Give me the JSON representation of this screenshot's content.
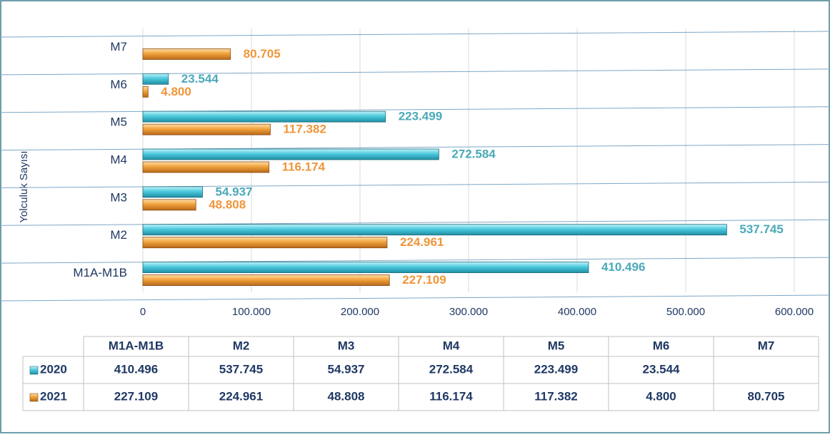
{
  "chart_data": {
    "type": "bar",
    "orientation": "horizontal",
    "y_axis_label": "Yolculuk Sayısı",
    "categories": [
      "M1A-M1B",
      "M2",
      "M3",
      "M4",
      "M5",
      "M6",
      "M7"
    ],
    "series": [
      {
        "name": "2020",
        "color": "#4cc9dd",
        "label_color": "#4aa9b9",
        "values": [
          410496,
          537745,
          54937,
          272584,
          223499,
          23544,
          null
        ],
        "value_labels": [
          "410.496",
          "537.745",
          "54.937",
          "272.584",
          "223.499",
          "23.544",
          null
        ]
      },
      {
        "name": "2021",
        "color": "#f0a23c",
        "label_color": "#f0953a",
        "values": [
          227109,
          224961,
          48808,
          116174,
          117382,
          4800,
          80705
        ],
        "value_labels": [
          "227.109",
          "224.961",
          "48.808",
          "116.174",
          "117.382",
          "4.800",
          "80.705"
        ]
      }
    ],
    "xlim": [
      0,
      600000
    ],
    "xticks": [
      0,
      {
        "value": 100000,
        "label": "100.000"
      },
      {
        "value": 200000,
        "label": "200.000"
      },
      {
        "value": 300000,
        "label": "300.000"
      },
      {
        "value": 400000,
        "label": "400.000"
      },
      {
        "value": 500000,
        "label": "500.000"
      },
      {
        "value": 600000,
        "label": "600.000"
      }
    ],
    "grid": true
  }
}
